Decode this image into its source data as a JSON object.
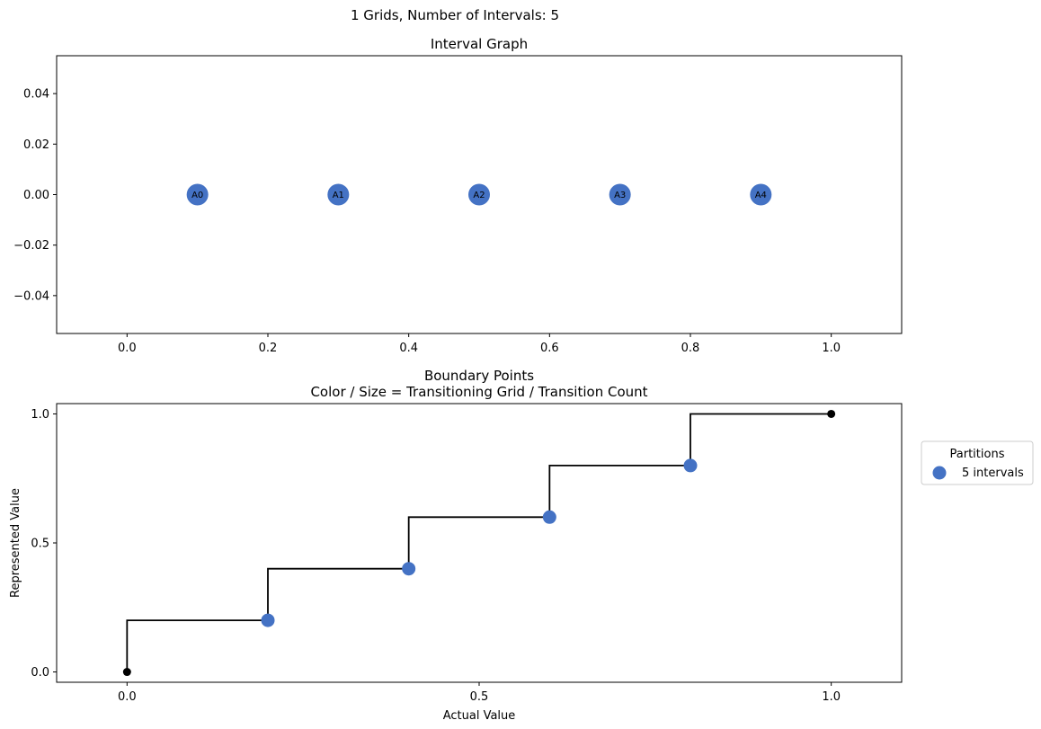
{
  "suptitle": "1 Grids, Number of Intervals: 5",
  "colors": {
    "node": "#4472c4",
    "step": "#000000",
    "endpoint": "#000000",
    "frame": "#000000"
  },
  "chart_data": [
    {
      "type": "scatter",
      "title": "Interval Graph",
      "xlim": [
        -0.1,
        1.1
      ],
      "ylim": [
        -0.055,
        0.055
      ],
      "xticks": [
        0.0,
        0.2,
        0.4,
        0.6,
        0.8,
        1.0
      ],
      "xtick_labels": [
        "0.0",
        "0.2",
        "0.4",
        "0.6",
        "0.8",
        "1.0"
      ],
      "yticks": [
        0.04,
        0.02,
        0.0,
        -0.02,
        -0.04
      ],
      "ytick_labels": [
        "0.04",
        "0.02",
        "0.00",
        "−0.02",
        "−0.04"
      ],
      "nodes": [
        {
          "label": "A0",
          "x": 0.1,
          "y": 0.0
        },
        {
          "label": "A1",
          "x": 0.3,
          "y": 0.0
        },
        {
          "label": "A2",
          "x": 0.5,
          "y": 0.0
        },
        {
          "label": "A3",
          "x": 0.7,
          "y": 0.0
        },
        {
          "label": "A4",
          "x": 0.9,
          "y": 0.0
        }
      ],
      "grid": false
    },
    {
      "type": "line",
      "title_lines": [
        "Boundary Points",
        "Color / Size = Transitioning Grid / Transition Count"
      ],
      "xlabel": "Actual Value",
      "ylabel": "Represented Value",
      "xlim": [
        -0.1,
        1.1
      ],
      "ylim": [
        -0.04,
        1.04
      ],
      "xticks": [
        0.0,
        0.5,
        1.0
      ],
      "xtick_labels": [
        "0.0",
        "0.5",
        "1.0"
      ],
      "yticks": [
        0.0,
        0.5,
        1.0
      ],
      "ytick_labels": [
        "0.0",
        "0.5",
        "1.0"
      ],
      "step_x": [
        0.0,
        0.0,
        0.2,
        0.2,
        0.4,
        0.4,
        0.6,
        0.6,
        0.8,
        0.8,
        1.0
      ],
      "step_y": [
        0.0,
        0.2,
        0.2,
        0.4,
        0.4,
        0.6,
        0.6,
        0.8,
        0.8,
        1.0,
        1.0
      ],
      "endpoints": [
        {
          "x": 0.0,
          "y": 0.0
        },
        {
          "x": 1.0,
          "y": 1.0
        }
      ],
      "series": [
        {
          "name": "5 intervals",
          "points": [
            {
              "x": 0.2,
              "y": 0.2
            },
            {
              "x": 0.4,
              "y": 0.4
            },
            {
              "x": 0.6,
              "y": 0.6
            },
            {
              "x": 0.8,
              "y": 0.8
            }
          ]
        }
      ],
      "legend": {
        "title": "Partitions",
        "placement": "outside-right",
        "entries": [
          "5 intervals"
        ]
      },
      "grid": false
    }
  ]
}
